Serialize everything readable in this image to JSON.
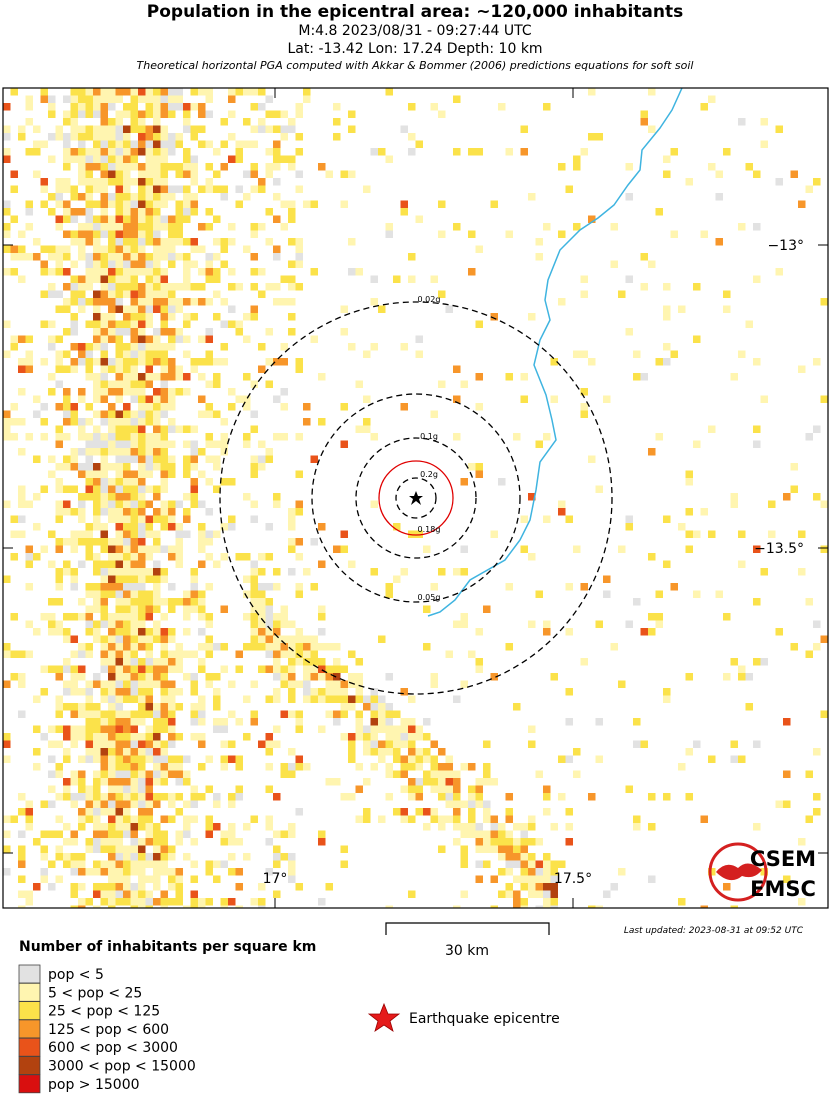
{
  "header": {
    "title": "Population in the epicentral area: ~120,000 inhabitants",
    "event": "M:4.8 2023/08/31 - 09:27:44 UTC",
    "location": "Lat: -13.42 Lon: 17.24 Depth: 10 km",
    "note": "Theoretical horizontal PGA computed with Akkar & Bommer (2006) predictions equations for soft soil"
  },
  "map": {
    "lon_labels": [
      "17°",
      "17.5°"
    ],
    "lat_labels": [
      "−13°",
      "−13.5°"
    ],
    "contours": [
      {
        "label": "0.02g",
        "color": "#000000"
      },
      {
        "label": "0.05g",
        "color": "#000000"
      },
      {
        "label": "0.1g",
        "color": "#000000"
      },
      {
        "label": "0.18g",
        "color": "#e00000"
      },
      {
        "label": "0.2g",
        "color": "#000000"
      }
    ],
    "river_color": "#3fb4e0",
    "logo": [
      "CSEM",
      "EMSC"
    ]
  },
  "scale_bar": "30 km",
  "last_updated": "Last updated: 2023-08-31 at 09:52 UTC",
  "legend": {
    "title": "Number of inhabitants per square km",
    "items": [
      {
        "label": "pop < 5",
        "color": "#e2e2e2"
      },
      {
        "label": "5 < pop < 25",
        "color": "#fff5b0"
      },
      {
        "label": "25 < pop < 125",
        "color": "#fbe24a"
      },
      {
        "label": "125 < pop < 600",
        "color": "#f7962a"
      },
      {
        "label": "600 < pop < 3000",
        "color": "#e9531a"
      },
      {
        "label": "3000 < pop < 15000",
        "color": "#b2420f"
      },
      {
        "label": "pop > 15000",
        "color": "#d90f0f"
      }
    ],
    "epicentre": "Earthquake epicentre"
  }
}
